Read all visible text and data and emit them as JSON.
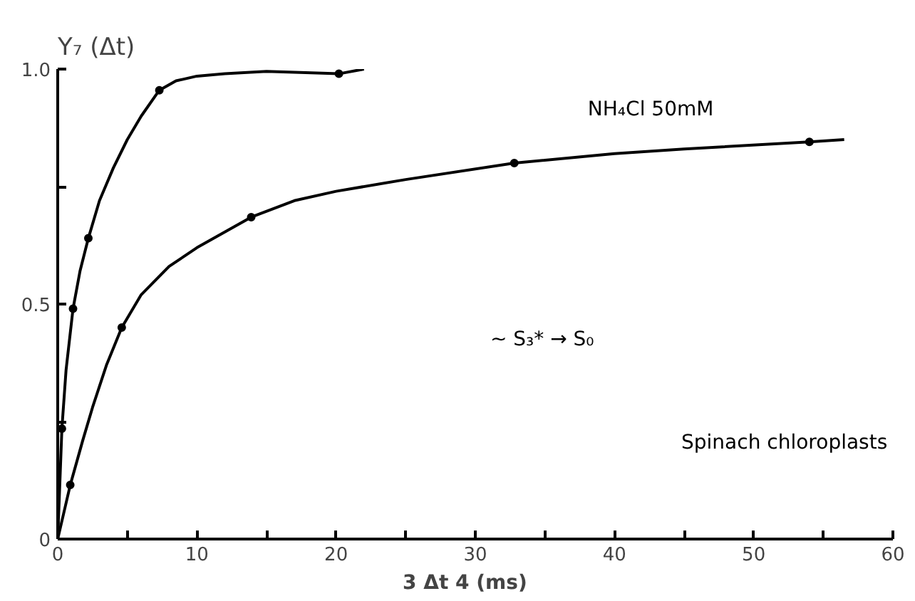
{
  "chart_data": {
    "type": "line",
    "xlabel": "3  Δt  4  (ms)",
    "ylabel": "Y₇ (Δt)",
    "xlim": [
      0,
      60
    ],
    "ylim": [
      0,
      1.0
    ],
    "xticks": [
      0,
      {
        "value": 5,
        "label": null
      },
      10,
      {
        "value": 15,
        "label": null
      },
      20,
      {
        "value": 25,
        "label": null
      },
      30,
      {
        "value": 35,
        "label": null
      },
      40,
      {
        "value": 45,
        "label": null
      },
      50,
      {
        "value": 55,
        "label": null
      },
      60
    ],
    "yticks": [
      0,
      {
        "value": 0.25,
        "label": null
      },
      0.5,
      {
        "value": 0.75,
        "label": null
      },
      {
        "value": 1.0,
        "label": "1.0"
      }
    ],
    "grid": false,
    "series": [
      {
        "color": "#000000",
        "marker": "none",
        "x": [
          0,
          0.3,
          0.6,
          1.1,
          1.6,
          2.2,
          3,
          4,
          5,
          6,
          7.3,
          8.5,
          10,
          12,
          15,
          20.2,
          22
        ],
        "values": [
          0,
          0.235,
          0.36,
          0.49,
          0.57,
          0.64,
          0.72,
          0.79,
          0.85,
          0.9,
          0.955,
          0.975,
          0.985,
          0.99,
          0.995,
          0.99,
          1.0
        ]
      },
      {
        "type": "scatter",
        "color": "#000000",
        "marker": "circle",
        "x": [
          0.3,
          1.1,
          2.2,
          7.3,
          20.2
        ],
        "values": [
          0.235,
          0.49,
          0.64,
          0.955,
          0.99
        ]
      },
      {
        "color": "#000000",
        "marker": "none",
        "x": [
          0,
          0.9,
          1.8,
          2.5,
          3.5,
          4.6,
          6,
          8,
          10,
          13.9,
          17,
          20,
          25,
          32.8,
          40,
          45,
          54,
          56.5
        ],
        "values": [
          0,
          0.115,
          0.21,
          0.28,
          0.37,
          0.45,
          0.52,
          0.58,
          0.62,
          0.685,
          0.72,
          0.74,
          0.765,
          0.8,
          0.82,
          0.83,
          0.845,
          0.85
        ]
      },
      {
        "type": "scatter",
        "color": "#000000",
        "marker": "circle",
        "x": [
          0.9,
          4.6,
          13.9,
          32.8,
          54
        ],
        "values": [
          0.115,
          0.45,
          0.685,
          0.8,
          0.845
        ]
      }
    ],
    "annotations": [
      "NH₄Cl 50mM",
      "~ S₃* → S₀",
      "Spinach chloroplasts"
    ]
  }
}
